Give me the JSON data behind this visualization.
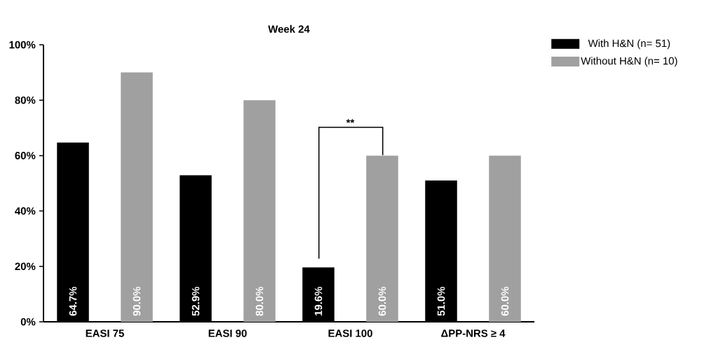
{
  "chart_data": {
    "type": "bar",
    "title": "Week 24",
    "categories": [
      "EASI 75",
      "EASI 90",
      "EASI 100",
      "ΔPP-NRS ≥ 4"
    ],
    "series": [
      {
        "name": "With H&N (n= 51)",
        "color": "#000000",
        "values": [
          64.7,
          52.9,
          19.6,
          51.0
        ],
        "value_labels": [
          "64.7%",
          "52.9%",
          "19.6%",
          "51.0%"
        ]
      },
      {
        "name": "Without H&N (n= 10)",
        "color": "#a0a0a0",
        "values": [
          90.0,
          80.0,
          60.0,
          60.0
        ],
        "value_labels": [
          "90.0%",
          "80.0%",
          "60.0%",
          "60.0%"
        ]
      }
    ],
    "ylim": [
      0,
      100
    ],
    "yticks": [
      {
        "value": 0,
        "label": "0%"
      },
      {
        "value": 20,
        "label": "20%"
      },
      {
        "value": 40,
        "label": "40%"
      },
      {
        "value": 60,
        "label": "60%"
      },
      {
        "value": 80,
        "label": "80%"
      },
      {
        "value": 100,
        "label": "100%"
      }
    ],
    "annotations": [
      "**"
    ],
    "legend": "top right"
  }
}
